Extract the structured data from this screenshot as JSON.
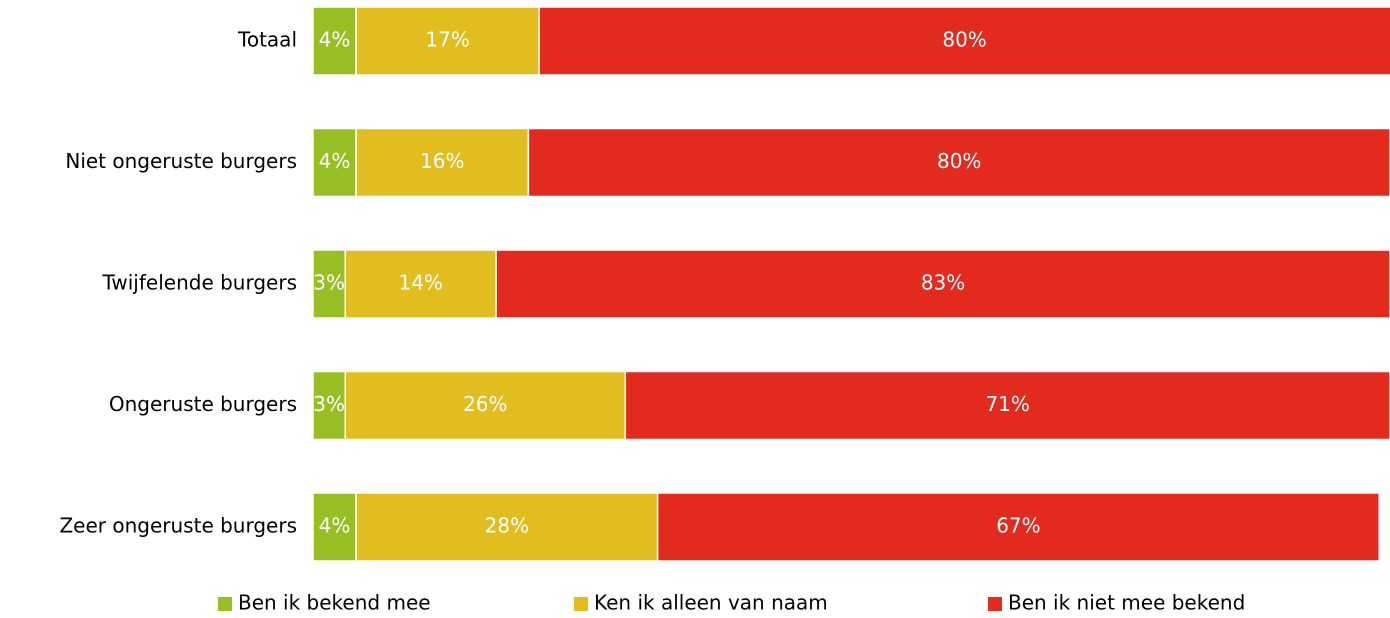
{
  "chart_data": {
    "type": "stacked-bar-horizontal",
    "categories": [
      "Totaal",
      "Niet ongeruste burgers",
      "Twijfelende burgers",
      "Ongeruste burgers",
      "Zeer ongeruste burgers"
    ],
    "xlim": [
      0,
      100
    ],
    "legend": "bottom",
    "series": [
      {
        "name": "Ben ik bekend mee",
        "color": "#97bf24",
        "values": [
          4,
          4,
          3,
          3,
          4
        ],
        "value_labels": [
          "4%",
          "4%",
          "3%",
          "3%",
          "4%"
        ]
      },
      {
        "name": "Ken ik alleen van naam",
        "color": "#e2bd1f",
        "values": [
          17,
          16,
          14,
          26,
          28
        ],
        "value_labels": [
          "17%",
          "16%",
          "14%",
          "26%",
          "28%"
        ]
      },
      {
        "name": "Ben ik niet mee bekend",
        "color": "#e32a1e",
        "values": [
          80,
          80,
          83,
          71,
          67
        ],
        "value_labels": [
          "80%",
          "80%",
          "83%",
          "71%",
          "67%"
        ]
      }
    ]
  }
}
